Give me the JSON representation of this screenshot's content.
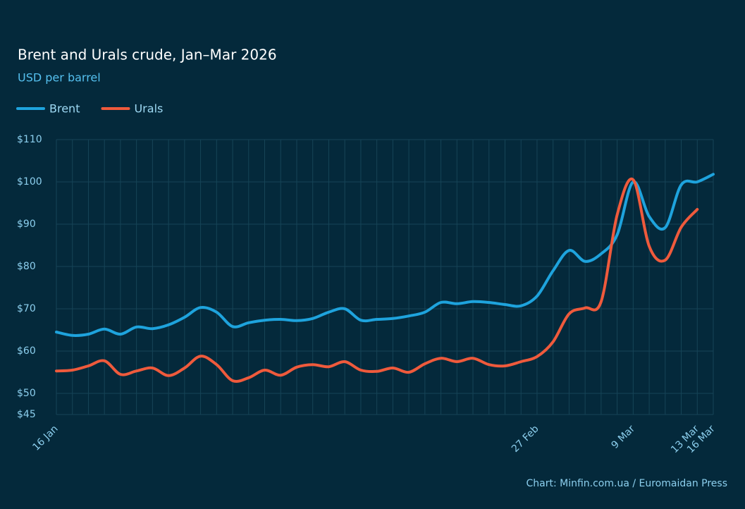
{
  "chart_data": {
    "type": "line",
    "title": "Brent and Urals crude, Jan–Mar 2026",
    "subtitle": "USD per barrel",
    "source": "Chart: Minfin.com.ua / Euromaidan Press",
    "legend": "top-left",
    "grid": true,
    "categories": [
      "16 Jan",
      null,
      null,
      null,
      null,
      null,
      null,
      null,
      null,
      null,
      null,
      null,
      null,
      null,
      null,
      null,
      null,
      null,
      null,
      null,
      null,
      null,
      null,
      null,
      null,
      null,
      null,
      null,
      null,
      null,
      "27 Feb",
      null,
      null,
      null,
      null,
      null,
      "9 Mar",
      null,
      null,
      null,
      "13 Mar",
      "16 Mar"
    ],
    "series": [
      {
        "name": "Brent",
        "color": "#1ea3dd",
        "values": [
          64.5,
          63.7,
          64.0,
          65.2,
          64.0,
          65.7,
          65.3,
          66.2,
          68.0,
          70.3,
          69.2,
          65.8,
          66.7,
          67.3,
          67.5,
          67.2,
          67.7,
          69.2,
          70.0,
          67.3,
          67.5,
          67.7,
          68.3,
          69.2,
          71.5,
          71.2,
          71.7,
          71.5,
          71.0,
          70.7,
          73.0,
          79.0,
          83.8,
          81.2,
          83.0,
          87.5,
          100.0,
          91.8,
          89.2,
          99.3,
          100.0,
          101.8
        ]
      },
      {
        "name": "Urals",
        "color": "#ef5a3c",
        "values": [
          55.3,
          55.5,
          56.5,
          57.7,
          54.5,
          55.3,
          56.0,
          54.2,
          56.0,
          58.8,
          56.8,
          53.0,
          53.7,
          55.5,
          54.3,
          56.2,
          56.8,
          56.3,
          57.5,
          55.5,
          55.2,
          56.0,
          55.0,
          57.0,
          58.3,
          57.5,
          58.3,
          56.8,
          56.5,
          57.5,
          58.7,
          62.2,
          68.8,
          70.2,
          71.7,
          92.2,
          100.5,
          84.8,
          81.5,
          89.3,
          93.5,
          null
        ]
      }
    ],
    "ylim": [
      45,
      110
    ],
    "yticks": [
      {
        "value": 45,
        "label": "$45"
      },
      {
        "value": 50,
        "label": "$50"
      },
      {
        "value": 60,
        "label": "$60"
      },
      {
        "value": 70,
        "label": "$70"
      },
      {
        "value": 80,
        "label": "$80"
      },
      {
        "value": 90,
        "label": "$90"
      },
      {
        "value": 100,
        "label": "$100"
      },
      {
        "value": 110,
        "label": "$110"
      }
    ]
  }
}
